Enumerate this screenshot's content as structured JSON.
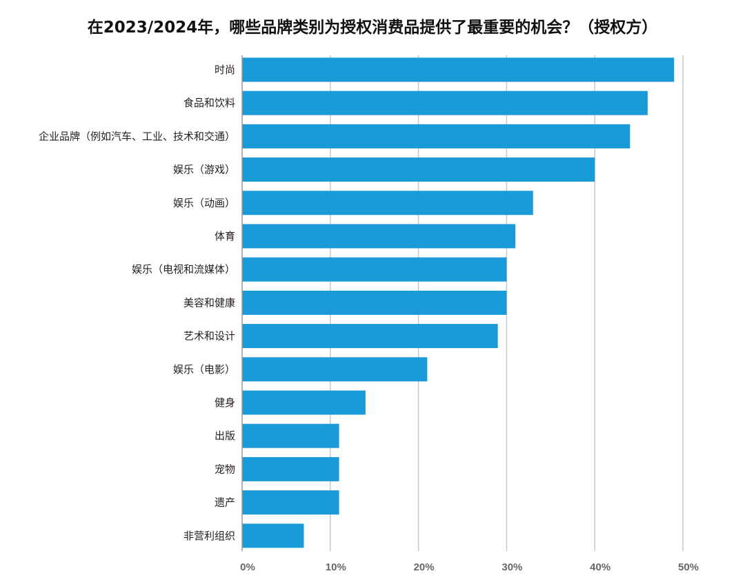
{
  "chart_data": {
    "type": "bar",
    "orientation": "horizontal",
    "title": "在2023/2024年，哪些品牌类别为授权消费品提供了最重要的机会？（授权方）",
    "categories": [
      "时尚",
      "食品和饮料",
      "企业品牌（例如汽车、工业、技术和交通）",
      "娱乐（游戏）",
      "娱乐（动画）",
      "体育",
      "娱乐（电视和流媒体）",
      "美容和健康",
      "艺术和设计",
      "娱乐（电影）",
      "健身",
      "出版",
      "宠物",
      "遗产",
      "非营利组织"
    ],
    "values": [
      49,
      46,
      44,
      40,
      33,
      31,
      30,
      30,
      29,
      21,
      14,
      11,
      11,
      11,
      7
    ],
    "xlim": [
      0,
      50
    ],
    "xticks": [
      "0%",
      "10%",
      "20%",
      "30%",
      "40%",
      "50%"
    ],
    "grid": "vertical",
    "bar_color": "#1a9ad6",
    "grid_color": "#c8c8c8"
  }
}
